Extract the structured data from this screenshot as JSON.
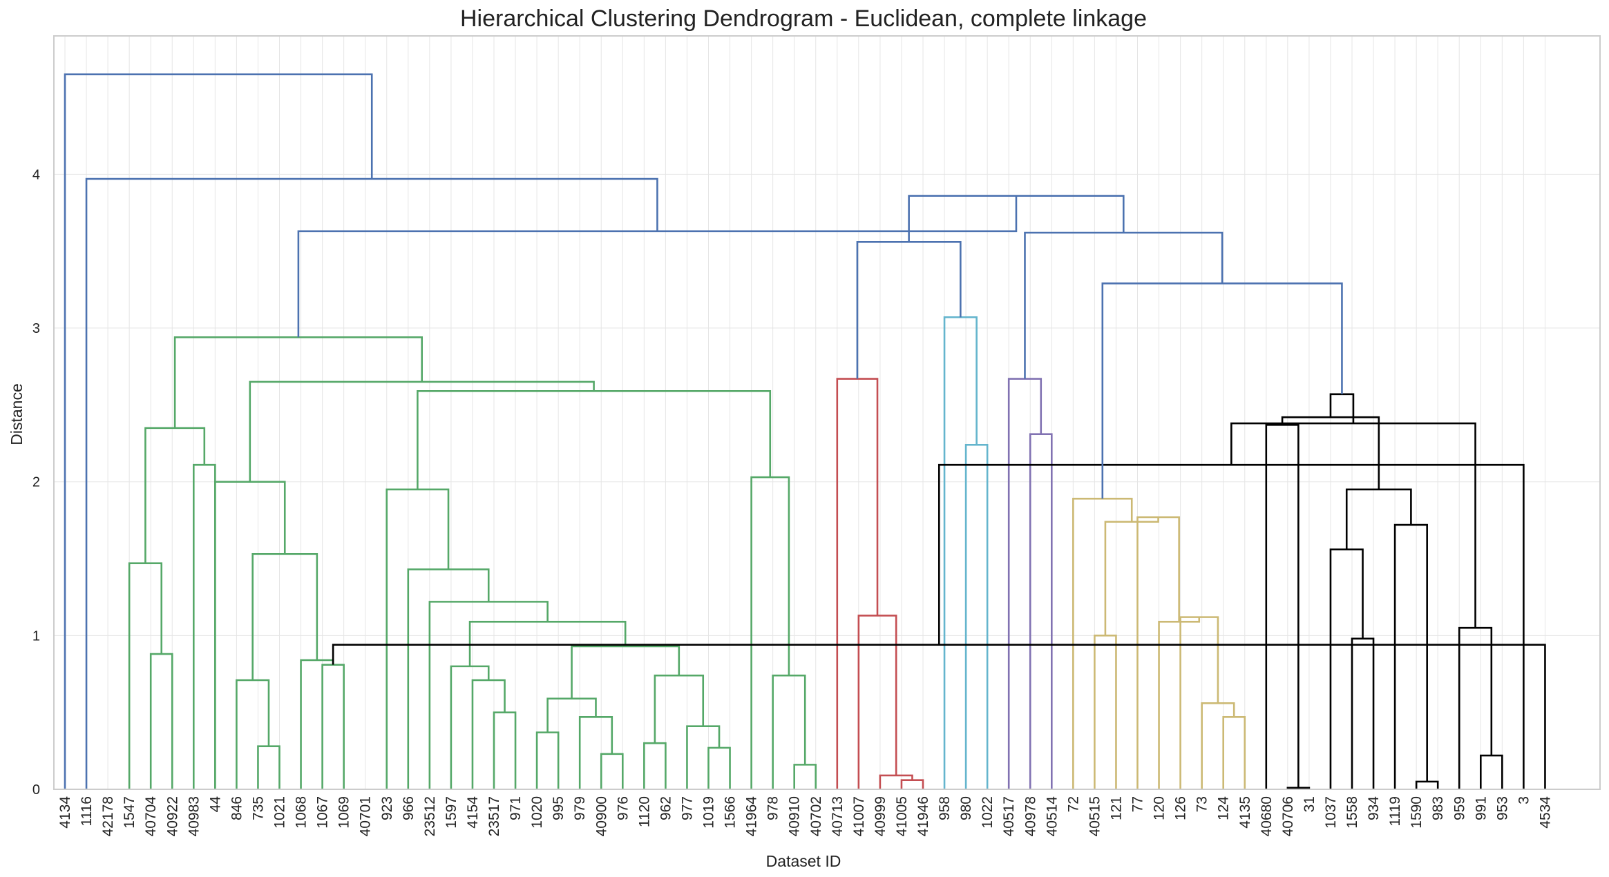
{
  "chart_data": {
    "type": "dendrogram",
    "title": "Hierarchical Clustering Dendrogram - Euclidean, complete linkage",
    "xlabel": "Dataset ID",
    "ylabel": "Distance",
    "ylim": [
      0,
      4.9
    ],
    "yticks": [
      "0",
      "1",
      "2",
      "3",
      "4"
    ],
    "grid": true,
    "leaves": [
      "4134",
      "1116",
      "42178",
      "1547",
      "40704",
      "40922",
      "40983",
      "44",
      "846",
      "735",
      "1021",
      "1068",
      "1067",
      "1069",
      "40701",
      "923",
      "966",
      "23512",
      "1597",
      "4154",
      "23517",
      "971",
      "1020",
      "995",
      "979",
      "40900",
      "976",
      "1120",
      "962",
      "977",
      "1019",
      "1566",
      "41964",
      "978",
      "40910",
      "40702",
      "40713",
      "41007",
      "40999",
      "41005",
      "41946",
      "958",
      "980",
      "1022",
      "40517",
      "40978",
      "40514",
      "72",
      "40515",
      "121",
      "77",
      "120",
      "126",
      "73",
      "124",
      "4135",
      "40680",
      "40706",
      "31",
      "1037",
      "1558",
      "934",
      "1119",
      "1590",
      "983",
      "959",
      "991",
      "953",
      "3",
      "4534"
    ],
    "colors": {
      "C0": "#4c72b0",
      "C1": "#55a868",
      "C2": "#c44e52",
      "C3": "#64b5cd",
      "C4": "#8172b2",
      "C5": "#ccb974",
      "C6": "#000000"
    },
    "links": [
      {
        "left": 12,
        "right": 13,
        "height": 0.81,
        "color": "C1"
      },
      {
        "left": 11,
        "right": 70,
        "height": 0.84,
        "color": "C1"
      },
      {
        "left": 9,
        "right": 10,
        "height": 0.28,
        "color": "C1"
      },
      {
        "left": 8,
        "right": 72,
        "height": 0.71,
        "color": "C1"
      },
      {
        "left": 73,
        "right": 71,
        "height": 1.53,
        "color": "C1"
      },
      {
        "left": 7,
        "right": 74,
        "height": 2.0,
        "color": "C1"
      },
      {
        "left": 4,
        "right": 5,
        "height": 0.88,
        "color": "C1"
      },
      {
        "left": 3,
        "right": 76,
        "height": 1.47,
        "color": "C1"
      },
      {
        "left": 6,
        "right": 7,
        "height": 2.11,
        "color": "C1"
      },
      {
        "left": 77,
        "right": 78,
        "height": 2.35,
        "color": "C1"
      },
      {
        "left": 20,
        "right": 21,
        "height": 0.5,
        "color": "C1"
      },
      {
        "left": 19,
        "right": 80,
        "height": 0.71,
        "color": "C1"
      },
      {
        "left": 18,
        "right": 81,
        "height": 0.8,
        "color": "C1"
      },
      {
        "left": 25,
        "right": 26,
        "height": 0.23,
        "color": "C1"
      },
      {
        "left": 24,
        "right": 83,
        "height": 0.47,
        "color": "C1"
      },
      {
        "left": 22,
        "right": 23,
        "height": 0.37,
        "color": "C1"
      },
      {
        "left": 85,
        "right": 84,
        "height": 0.59,
        "color": "C1"
      },
      {
        "left": 30,
        "right": 31,
        "height": 0.27,
        "color": "C1"
      },
      {
        "left": 29,
        "right": 87,
        "height": 0.41,
        "color": "C1"
      },
      {
        "left": 27,
        "right": 28,
        "height": 0.3,
        "color": "C1"
      },
      {
        "left": 89,
        "right": 88,
        "height": 0.74,
        "color": "C1"
      },
      {
        "left": 86,
        "right": 90,
        "height": 0.93,
        "color": "C1"
      },
      {
        "left": 82,
        "right": 91,
        "height": 1.09,
        "color": "C1"
      },
      {
        "left": 17,
        "right": 92,
        "height": 1.22,
        "color": "C1"
      },
      {
        "left": 16,
        "right": 93,
        "height": 1.43,
        "color": "C1"
      },
      {
        "left": 15,
        "right": 94,
        "height": 1.95,
        "color": "C1"
      },
      {
        "left": 34,
        "right": 35,
        "height": 0.16,
        "color": "C1"
      },
      {
        "left": 33,
        "right": 96,
        "height": 0.74,
        "color": "C1"
      },
      {
        "left": 32,
        "right": 97,
        "height": 2.03,
        "color": "C1"
      },
      {
        "left": 95,
        "right": 98,
        "height": 2.59,
        "color": "C1"
      },
      {
        "left": 75,
        "right": 99,
        "height": 2.65,
        "color": "C1"
      },
      {
        "left": 79,
        "right": 100,
        "height": 2.94,
        "color": "C1"
      },
      {
        "left": 39,
        "right": 40,
        "height": 0.06,
        "color": "C2"
      },
      {
        "left": 38,
        "right": 102,
        "height": 0.09,
        "color": "C2"
      },
      {
        "left": 37,
        "right": 103,
        "height": 1.13,
        "color": "C2"
      },
      {
        "left": 36,
        "right": 104,
        "height": 2.67,
        "color": "C2"
      },
      {
        "left": 42,
        "right": 43,
        "height": 2.24,
        "color": "C3"
      },
      {
        "left": 41,
        "right": 106,
        "height": 3.07,
        "color": "C3"
      },
      {
        "left": 105,
        "right": 107,
        "height": 3.56,
        "color": "C0"
      },
      {
        "left": 45,
        "right": 46,
        "height": 2.31,
        "color": "C4"
      },
      {
        "left": 44,
        "right": 109,
        "height": 2.67,
        "color": "C4"
      },
      {
        "left": 48,
        "right": 49,
        "height": 1.0,
        "color": "C5"
      },
      {
        "left": 54,
        "right": 55,
        "height": 0.47,
        "color": "C5"
      },
      {
        "left": 53,
        "right": 112,
        "height": 0.56,
        "color": "C5"
      },
      {
        "left": 52,
        "right": 113,
        "height": 1.12,
        "color": "C5"
      },
      {
        "left": 51,
        "right": 114,
        "height": 1.09,
        "color": "C5"
      },
      {
        "left": 50,
        "right": 115,
        "height": 1.77,
        "color": "C5"
      },
      {
        "left": 111,
        "right": 116,
        "height": 1.74,
        "color": "C5"
      },
      {
        "left": 47,
        "right": 117,
        "height": 1.89,
        "color": "C5"
      },
      {
        "left": 57,
        "right": 58,
        "height": 0.01,
        "color": "C6"
      },
      {
        "left": 56,
        "right": 119,
        "height": 2.37,
        "color": "C6"
      },
      {
        "left": 60,
        "right": 61,
        "height": 0.98,
        "color": "C6"
      },
      {
        "left": 59,
        "right": 121,
        "height": 1.56,
        "color": "C6"
      },
      {
        "left": 63,
        "right": 64,
        "height": 0.05,
        "color": "C6"
      },
      {
        "left": 62,
        "right": 123,
        "height": 1.72,
        "color": "C6"
      },
      {
        "left": 122,
        "right": 124,
        "height": 1.95,
        "color": "C6"
      },
      {
        "left": 120,
        "right": 125,
        "height": 2.42,
        "color": "C6"
      },
      {
        "left": 66,
        "right": 67,
        "height": 0.22,
        "color": "C6"
      },
      {
        "left": 65,
        "right": 127,
        "height": 1.05,
        "color": "C6"
      },
      {
        "left": 69,
        "right": 70,
        "height": 0.94,
        "color": "C6"
      },
      {
        "left": 68,
        "right": 129,
        "height": 2.11,
        "color": "C6"
      },
      {
        "left": 128,
        "right": 130,
        "height": 2.38,
        "color": "C6"
      },
      {
        "left": 126,
        "right": 131,
        "height": 2.57,
        "color": "C6"
      },
      {
        "left": 118,
        "right": 132,
        "height": 3.29,
        "color": "C0"
      },
      {
        "left": 110,
        "right": 133,
        "height": 3.62,
        "color": "C0"
      },
      {
        "left": 108,
        "right": 134,
        "height": 3.86,
        "color": "C0"
      },
      {
        "left": 101,
        "right": 135,
        "height": 3.63,
        "color": "C0"
      },
      {
        "left": 1,
        "right": 136,
        "height": 3.97,
        "color": "C0"
      },
      {
        "left": 0,
        "right": 137,
        "height": 4.65,
        "color": "C0"
      }
    ]
  }
}
